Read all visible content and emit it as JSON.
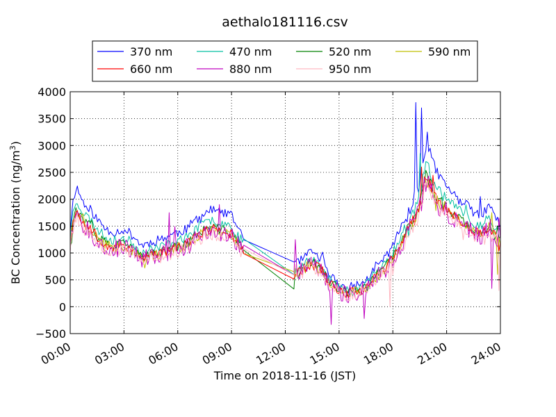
{
  "chart_data": {
    "type": "line",
    "title": "aethalo181116.csv",
    "xlabel": "Time on 2018-11-16 (JST)",
    "ylabel_main": "BC Concentration (ng/m",
    "ylabel_sup": "3",
    "ylabel_close": ")",
    "x_unit": "hour",
    "xlim": [
      0,
      24
    ],
    "ylim": [
      -500,
      4000
    ],
    "x_ticks": [
      0,
      3,
      6,
      9,
      12,
      15,
      18,
      21,
      24
    ],
    "x_tick_labels": [
      "00:00",
      "03:00",
      "06:00",
      "09:00",
      "12:00",
      "15:00",
      "18:00",
      "21:00",
      "24:00"
    ],
    "y_ticks": [
      -500,
      0,
      500,
      1000,
      1500,
      2000,
      2500,
      3000,
      3500,
      4000
    ],
    "y_tick_labels": [
      "−500",
      "0",
      "500",
      "1000",
      "1500",
      "2000",
      "2500",
      "3000",
      "3500",
      "4000"
    ],
    "grid": true,
    "legend_position": "top",
    "base_profile": {
      "x": [
        0,
        0.1,
        0.2,
        0.35,
        0.5,
        0.75,
        1,
        1.5,
        2,
        2.5,
        3,
        3.5,
        4,
        4.5,
        5,
        5.5,
        6,
        6.5,
        7,
        7.5,
        8,
        8.5,
        9,
        9.3,
        9.7,
        12.5,
        12.8,
        13.2,
        13.5,
        14,
        14.5,
        15,
        15.5,
        16,
        16.5,
        17,
        17.5,
        18,
        18.5,
        19,
        19.3,
        19.6,
        19.8,
        20,
        20.3,
        20.6,
        21,
        21.5,
        22,
        22.5,
        23,
        23.3,
        23.7,
        24
      ],
      "y": [
        1150,
        1450,
        1650,
        1800,
        1700,
        1550,
        1500,
        1300,
        1150,
        1100,
        1150,
        1050,
        900,
        950,
        1000,
        1050,
        1100,
        1150,
        1300,
        1400,
        1450,
        1400,
        1350,
        1200,
        1050,
        600,
        650,
        750,
        800,
        700,
        450,
        300,
        250,
        300,
        350,
        550,
        700,
        900,
        1200,
        1500,
        1700,
        2000,
        2400,
        2300,
        2100,
        1950,
        1800,
        1650,
        1550,
        1400,
        1350,
        1500,
        1350,
        1200
      ]
    },
    "series": [
      {
        "name": "370 nm",
        "color": "#0000ff",
        "scale": 1.22,
        "offset": 40,
        "noise": 90,
        "seed": 11,
        "spikes": [
          [
            0.3,
            2150
          ],
          [
            19.3,
            3800
          ],
          [
            19.6,
            3700
          ],
          [
            19.9,
            3250
          ],
          [
            20.1,
            2950
          ],
          [
            22.9,
            2050
          ]
        ]
      },
      {
        "name": "470 nm",
        "color": "#00bfa0",
        "scale": 1.1,
        "offset": 20,
        "noise": 90,
        "seed": 23,
        "spikes": [
          [
            19.5,
            2850
          ],
          [
            19.8,
            2700
          ]
        ]
      },
      {
        "name": "520 nm",
        "color": "#008000",
        "scale": 1.02,
        "offset": 0,
        "noise": 90,
        "seed": 37,
        "spikes": [
          [
            12.4,
            330
          ]
        ]
      },
      {
        "name": "590 nm",
        "color": "#bfbf00",
        "scale": 1.0,
        "offset": -10,
        "noise": 100,
        "seed": 41,
        "spikes": [
          [
            23.5,
            1750
          ],
          [
            23.8,
            600
          ]
        ]
      },
      {
        "name": "660 nm",
        "color": "#ff0000",
        "scale": 1.0,
        "offset": 0,
        "noise": 95,
        "seed": 53,
        "spikes": [
          [
            19.6,
            2600
          ]
        ]
      },
      {
        "name": "880 nm",
        "color": "#bf00bf",
        "scale": 0.98,
        "offset": -10,
        "noise": 170,
        "seed": 67,
        "spikes": [
          [
            5.5,
            1750
          ],
          [
            8.3,
            1900
          ],
          [
            12.6,
            1250
          ],
          [
            14.6,
            -330
          ],
          [
            16.4,
            -220
          ],
          [
            23.5,
            340
          ],
          [
            23.9,
            1650
          ]
        ]
      },
      {
        "name": "950 nm",
        "color": "#ffb6c1",
        "scale": 0.95,
        "offset": -20,
        "noise": 120,
        "seed": 79,
        "spikes": [
          [
            17.8,
            0
          ],
          [
            23.9,
            300
          ]
        ]
      }
    ]
  }
}
